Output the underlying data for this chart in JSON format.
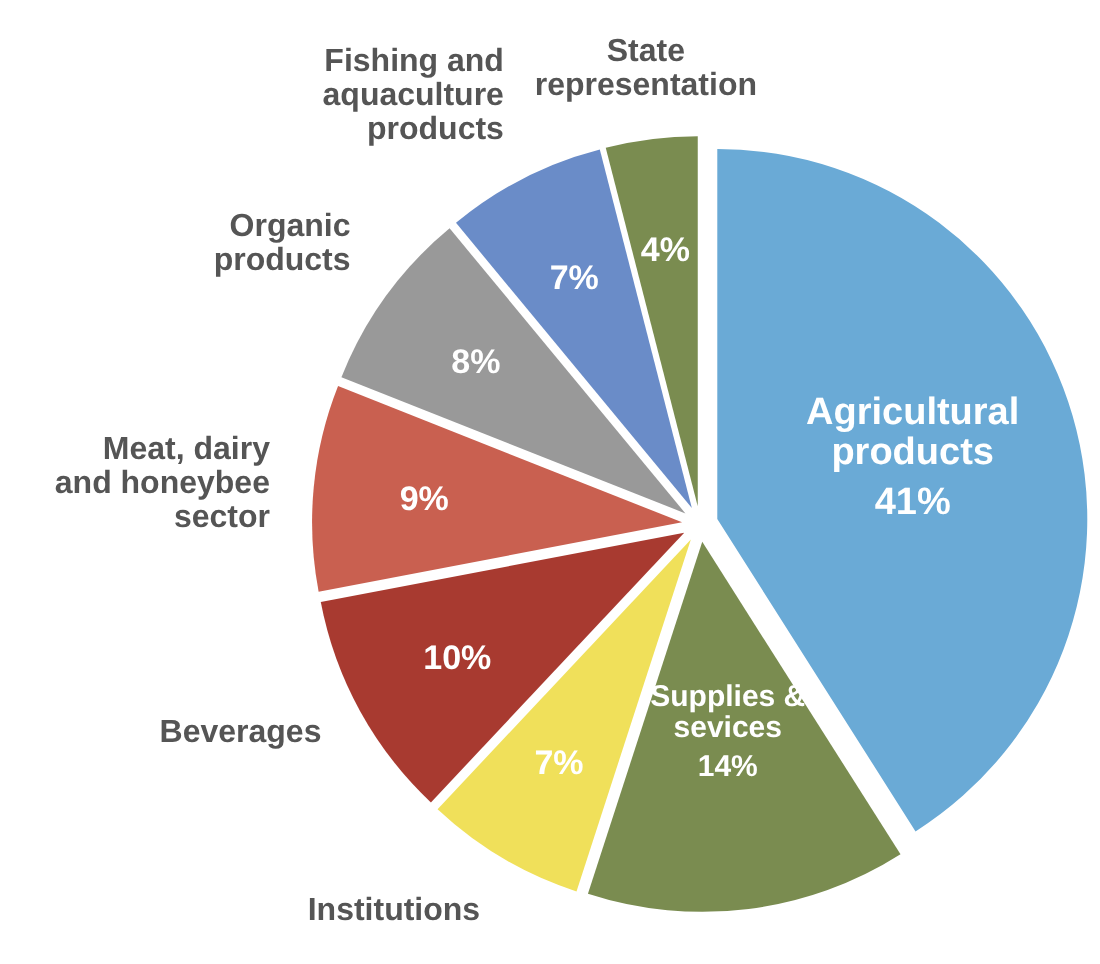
{
  "chart_data": {
    "type": "pie",
    "categories": [
      "Agricultural products",
      "Supplies & sevices",
      "Institutions",
      "Beverages",
      "Meat, dairy and honeybee sector",
      "Organic products",
      "Fishing and aquaculture products",
      "State representation"
    ],
    "values": [
      41,
      14,
      7,
      10,
      9,
      8,
      7,
      4
    ],
    "value_labels": [
      "41%",
      "14%",
      "7%",
      "10%",
      "9%",
      "8%",
      "7%",
      "4%"
    ],
    "colors": [
      "#6aaad6",
      "#7a8c50",
      "#f0e05a",
      "#a83a30",
      "#c96050",
      "#999999",
      "#6a8cc8",
      "#7a8c50"
    ]
  }
}
